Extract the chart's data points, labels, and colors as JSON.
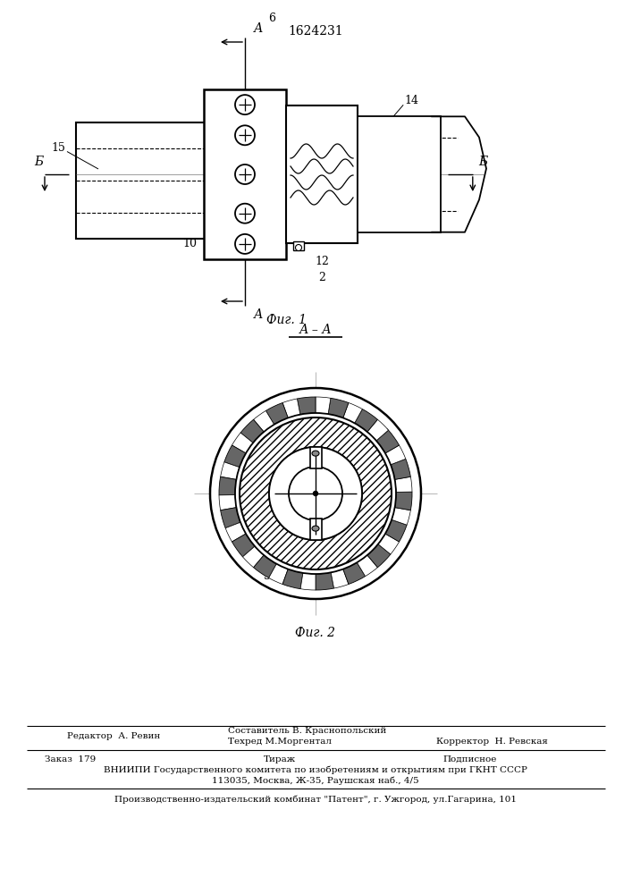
{
  "patent_number": "1624231",
  "fig1_caption": "Фиг. 1",
  "fig2_caption": "Фиг. 2",
  "background_color": "#ffffff",
  "line_color": "#000000",
  "footer": {
    "editor_label": "Редактор  А. Ревин",
    "composer_label": "Составитель В. Краснопольский",
    "techred_label": "Техред М.Моргентал",
    "corrector_label": "Корректор  Н. Ревская",
    "order_label": "Заказ  179",
    "tirazh_label": "Тираж",
    "podpisnoe_label": "Подписное",
    "vniip_line1": "ВНИИПИ Государственного комитета по изобретениям и открытиям при ГКНТ СССР",
    "vniip_line2": "113035, Москва, Ж-35, Раушская наб., 4/5",
    "factory_line": "Производственно-издательский комбинат \"Патент\", г. Ужгород, ул.Гагарина, 101"
  }
}
